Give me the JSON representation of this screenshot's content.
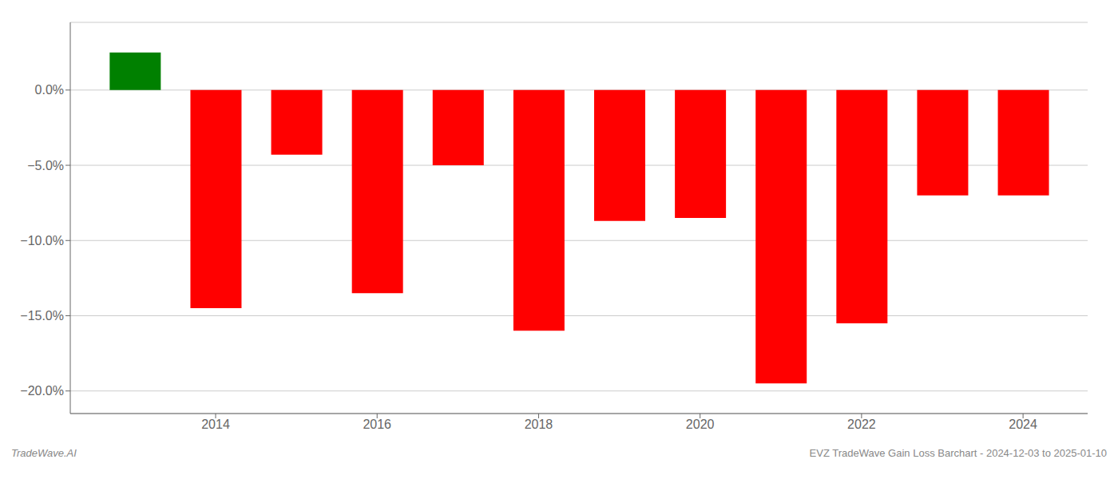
{
  "chart_data": {
    "type": "bar",
    "annotations": [
      "TradeWave.AI",
      "EVZ TradeWave Gain Loss Barchart - 2024-12-03 to 2025-01-10"
    ],
    "x": [
      2013,
      2014,
      2015,
      2016,
      2017,
      2018,
      2019,
      2020,
      2021,
      2022,
      2023,
      2024
    ],
    "values": [
      2.5,
      -14.5,
      -4.3,
      -13.5,
      -5.0,
      -16.0,
      -8.7,
      -8.5,
      -19.5,
      -15.5,
      -7.0,
      -7.0
    ],
    "colors": [
      "#008000",
      "#ff0000",
      "#ff0000",
      "#ff0000",
      "#ff0000",
      "#ff0000",
      "#ff0000",
      "#ff0000",
      "#ff0000",
      "#ff0000",
      "#ff0000",
      "#ff0000"
    ],
    "xlim": [
      2012.2,
      2024.8
    ],
    "xticks": [
      2014,
      2016,
      2018,
      2020,
      2022,
      2024
    ],
    "ylim": [
      -21.5,
      4.5
    ],
    "yticks": [
      {
        "value": 0.0,
        "label": "0.0%"
      },
      {
        "value": -5.0,
        "label": "−5.0%"
      },
      {
        "value": -10.0,
        "label": "−10.0%"
      },
      {
        "value": -15.0,
        "label": "−15.0%"
      },
      {
        "value": -20.0,
        "label": "−20.0%"
      }
    ],
    "grid": true
  }
}
